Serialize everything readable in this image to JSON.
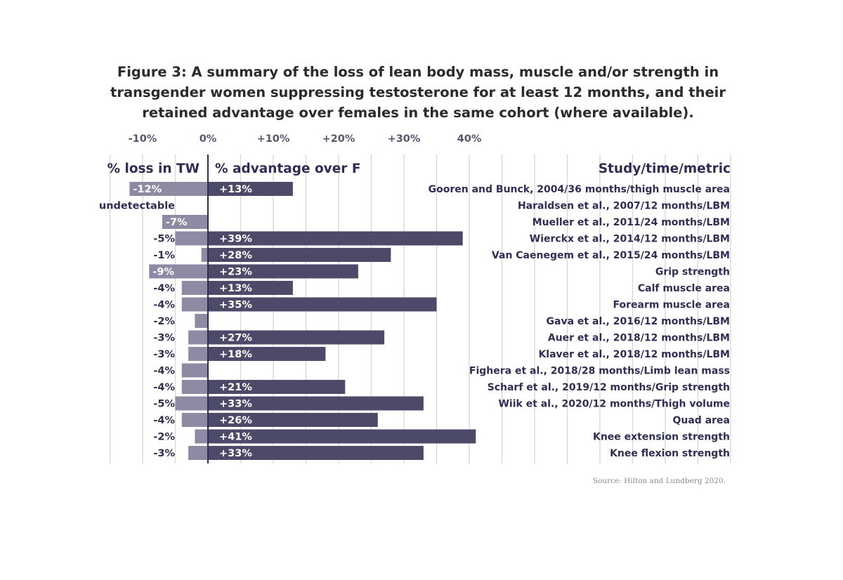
{
  "title_lines": [
    "Figure 3: A summary of the loss of lean body mass, muscle and/or strength in",
    "transgender women suppressing testosterone for at least 12 months, and their",
    "retained advantage over females in the same cohort (where available)."
  ],
  "source": "Source: Hilton and Lundberg 2020.",
  "colors": {
    "loss_bar": "#8e8aa4",
    "advantage_bar": "#4d4a69",
    "header_text": "#2e2d52",
    "label_text": "#2e2d52",
    "tick_text": "#57566f",
    "grid": "#d6d6d6",
    "zero_line": "#2e2d52"
  },
  "chart_data": {
    "type": "bar",
    "orientation": "horizontal",
    "axis_ticks": [
      "-10%",
      "0%",
      "+10%",
      "+20%",
      "+30%",
      "40%"
    ],
    "axis_tick_values": [
      -10,
      0,
      10,
      20,
      30,
      40
    ],
    "xlim": [
      -15,
      80
    ],
    "headers": {
      "loss": "% loss in TW",
      "advantage": "% advantage over F",
      "study": "Study/time/metric"
    },
    "series": [
      {
        "name": "% loss in TW",
        "values": [
          -12,
          null,
          -7,
          -5,
          -1,
          -9,
          -4,
          -4,
          -2,
          -3,
          -3,
          -4,
          -4,
          -5,
          -4,
          -2,
          -3
        ]
      },
      {
        "name": "% advantage over F",
        "values": [
          13,
          null,
          null,
          39,
          28,
          23,
          13,
          35,
          null,
          27,
          18,
          null,
          21,
          33,
          26,
          41,
          33
        ]
      }
    ],
    "rows": [
      {
        "study": "Gooren and Bunck, 2004/36 months/thigh muscle area",
        "loss": -12,
        "loss_label": "-12%",
        "advantage": 13,
        "advantage_label": "+13%"
      },
      {
        "study": "Haraldsen et al., 2007/12 months/LBM",
        "loss": null,
        "loss_label": "undetectable",
        "advantage": null,
        "advantage_label": ""
      },
      {
        "study": "Mueller et al., 2011/24 months/LBM",
        "loss": -7,
        "loss_label": "-7%",
        "advantage": null,
        "advantage_label": ""
      },
      {
        "study": "Wierckx et al., 2014/12 months/LBM",
        "loss": -5,
        "loss_label": "-5%",
        "advantage": 39,
        "advantage_label": "+39%"
      },
      {
        "study": "Van Caenegem et al., 2015/24 months/LBM",
        "loss": -1,
        "loss_label": "-1%",
        "advantage": 28,
        "advantage_label": "+28%"
      },
      {
        "study": "Grip strength",
        "loss": -9,
        "loss_label": "-9%",
        "advantage": 23,
        "advantage_label": "+23%"
      },
      {
        "study": "Calf muscle area",
        "loss": -4,
        "loss_label": "-4%",
        "advantage": 13,
        "advantage_label": "+13%"
      },
      {
        "study": "Forearm muscle area",
        "loss": -4,
        "loss_label": "-4%",
        "advantage": 35,
        "advantage_label": "+35%"
      },
      {
        "study": "Gava et al., 2016/12 months/LBM",
        "loss": -2,
        "loss_label": "-2%",
        "advantage": null,
        "advantage_label": ""
      },
      {
        "study": "Auer et al., 2018/12 months/LBM",
        "loss": -3,
        "loss_label": "-3%",
        "advantage": 27,
        "advantage_label": "+27%"
      },
      {
        "study": "Klaver et al., 2018/12 months/LBM",
        "loss": -3,
        "loss_label": "-3%",
        "advantage": 18,
        "advantage_label": "+18%"
      },
      {
        "study": "Fighera et al., 2018/28 months/Limb lean mass",
        "loss": -4,
        "loss_label": "-4%",
        "advantage": null,
        "advantage_label": ""
      },
      {
        "study": "Scharf et al., 2019/12 months/Grip strength",
        "loss": -4,
        "loss_label": "-4%",
        "advantage": 21,
        "advantage_label": "+21%"
      },
      {
        "study": "Wiik et al., 2020/12 months/Thigh volume",
        "loss": -5,
        "loss_label": "-5%",
        "advantage": 33,
        "advantage_label": "+33%"
      },
      {
        "study": "Quad area",
        "loss": -4,
        "loss_label": "-4%",
        "advantage": 26,
        "advantage_label": "+26%"
      },
      {
        "study": "Knee extension strength",
        "loss": -2,
        "loss_label": "-2%",
        "advantage": 41,
        "advantage_label": "+41%"
      },
      {
        "study": "Knee flexion strength",
        "loss": -3,
        "loss_label": "-3%",
        "advantage": 33,
        "advantage_label": "+33%"
      }
    ]
  }
}
